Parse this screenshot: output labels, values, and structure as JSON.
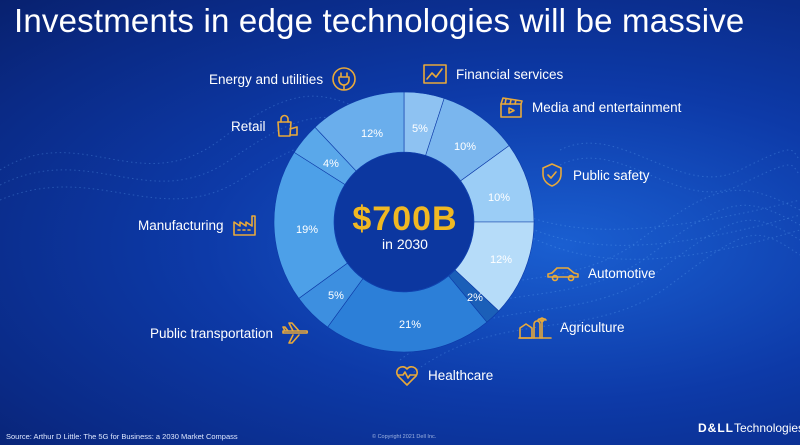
{
  "title": "Investments in edge technologies will be massive",
  "center": {
    "value": "$700B",
    "subtitle": "in 2030"
  },
  "chart_data": {
    "type": "pie",
    "style": "donut",
    "center_text": "$700B in 2030",
    "slices": [
      {
        "name": "Financial services",
        "label": "5%",
        "value": 5,
        "color": "#8ec2f2",
        "icon": "line-chart-icon"
      },
      {
        "name": "Media and entertainment",
        "label": "10%",
        "value": 10,
        "color": "#7ab6ee",
        "icon": "clapperboard-icon"
      },
      {
        "name": "Public safety",
        "label": "10%",
        "value": 10,
        "color": "#9bcdf6",
        "icon": "shield-icon"
      },
      {
        "name": "Automotive",
        "label": "12%",
        "value": 12,
        "color": "#b6dcf9",
        "icon": "car-icon"
      },
      {
        "name": "Agriculture",
        "label": "2%",
        "value": 2,
        "color": "#1b5fb8",
        "icon": "farm-icon"
      },
      {
        "name": "Healthcare",
        "label": "21%",
        "value": 21,
        "color": "#2c7fd8",
        "icon": "heartbeat-icon"
      },
      {
        "name": "Public transportation",
        "label": "5%",
        "value": 5,
        "color": "#3d8fe0",
        "icon": "airplane-icon"
      },
      {
        "name": "Manufacturing",
        "label": "19%",
        "value": 19,
        "color": "#4da0e8",
        "icon": "factory-icon"
      },
      {
        "name": "Retail",
        "label": "4%",
        "value": 4,
        "color": "#5aa8ea",
        "icon": "shopping-bag-icon"
      },
      {
        "name": "Energy and utilities",
        "label": "12%",
        "value": 12,
        "color": "#6aaeec",
        "icon": "power-plug-icon"
      }
    ],
    "start": "top",
    "direction": "clockwise"
  },
  "source": "Source: Arthur D Little: The 5G for Business: a 2030 Market Compass",
  "copyright": "© Copyright 2021 Dell Inc.",
  "brand": {
    "part1": "D&LL",
    "part2": "Technologies"
  },
  "colors": {
    "accent": "#e8a93a",
    "center_value": "#f0b823",
    "background": "#0d3aa8"
  }
}
